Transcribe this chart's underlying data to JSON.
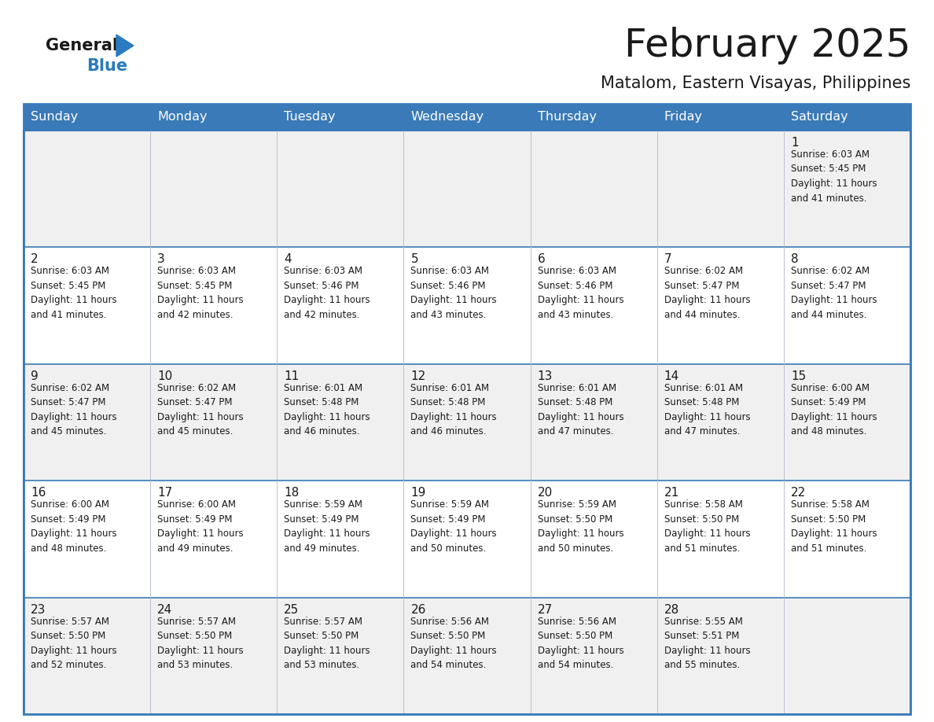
{
  "title": "February 2025",
  "subtitle": "Matalom, Eastern Visayas, Philippines",
  "header_color": "#3a7ab8",
  "header_text_color": "#ffffff",
  "cell_bg_even": "#f0f0f0",
  "cell_bg_odd": "#ffffff",
  "grid_line_color": "#3a7ab8",
  "inner_line_color": "#b0b8c8",
  "day_headers": [
    "Sunday",
    "Monday",
    "Tuesday",
    "Wednesday",
    "Thursday",
    "Friday",
    "Saturday"
  ],
  "title_color": "#1a1a1a",
  "subtitle_color": "#1a1a1a",
  "day_number_color": "#1a1a1a",
  "cell_text_color": "#1a1a1a",
  "logo_general_color": "#1a1a1a",
  "logo_blue_color": "#2a7bbf",
  "calendar_data": [
    [
      {
        "day": null,
        "info": null
      },
      {
        "day": null,
        "info": null
      },
      {
        "day": null,
        "info": null
      },
      {
        "day": null,
        "info": null
      },
      {
        "day": null,
        "info": null
      },
      {
        "day": null,
        "info": null
      },
      {
        "day": 1,
        "info": "Sunrise: 6:03 AM\nSunset: 5:45 PM\nDaylight: 11 hours\nand 41 minutes."
      }
    ],
    [
      {
        "day": 2,
        "info": "Sunrise: 6:03 AM\nSunset: 5:45 PM\nDaylight: 11 hours\nand 41 minutes."
      },
      {
        "day": 3,
        "info": "Sunrise: 6:03 AM\nSunset: 5:45 PM\nDaylight: 11 hours\nand 42 minutes."
      },
      {
        "day": 4,
        "info": "Sunrise: 6:03 AM\nSunset: 5:46 PM\nDaylight: 11 hours\nand 42 minutes."
      },
      {
        "day": 5,
        "info": "Sunrise: 6:03 AM\nSunset: 5:46 PM\nDaylight: 11 hours\nand 43 minutes."
      },
      {
        "day": 6,
        "info": "Sunrise: 6:03 AM\nSunset: 5:46 PM\nDaylight: 11 hours\nand 43 minutes."
      },
      {
        "day": 7,
        "info": "Sunrise: 6:02 AM\nSunset: 5:47 PM\nDaylight: 11 hours\nand 44 minutes."
      },
      {
        "day": 8,
        "info": "Sunrise: 6:02 AM\nSunset: 5:47 PM\nDaylight: 11 hours\nand 44 minutes."
      }
    ],
    [
      {
        "day": 9,
        "info": "Sunrise: 6:02 AM\nSunset: 5:47 PM\nDaylight: 11 hours\nand 45 minutes."
      },
      {
        "day": 10,
        "info": "Sunrise: 6:02 AM\nSunset: 5:47 PM\nDaylight: 11 hours\nand 45 minutes."
      },
      {
        "day": 11,
        "info": "Sunrise: 6:01 AM\nSunset: 5:48 PM\nDaylight: 11 hours\nand 46 minutes."
      },
      {
        "day": 12,
        "info": "Sunrise: 6:01 AM\nSunset: 5:48 PM\nDaylight: 11 hours\nand 46 minutes."
      },
      {
        "day": 13,
        "info": "Sunrise: 6:01 AM\nSunset: 5:48 PM\nDaylight: 11 hours\nand 47 minutes."
      },
      {
        "day": 14,
        "info": "Sunrise: 6:01 AM\nSunset: 5:48 PM\nDaylight: 11 hours\nand 47 minutes."
      },
      {
        "day": 15,
        "info": "Sunrise: 6:00 AM\nSunset: 5:49 PM\nDaylight: 11 hours\nand 48 minutes."
      }
    ],
    [
      {
        "day": 16,
        "info": "Sunrise: 6:00 AM\nSunset: 5:49 PM\nDaylight: 11 hours\nand 48 minutes."
      },
      {
        "day": 17,
        "info": "Sunrise: 6:00 AM\nSunset: 5:49 PM\nDaylight: 11 hours\nand 49 minutes."
      },
      {
        "day": 18,
        "info": "Sunrise: 5:59 AM\nSunset: 5:49 PM\nDaylight: 11 hours\nand 49 minutes."
      },
      {
        "day": 19,
        "info": "Sunrise: 5:59 AM\nSunset: 5:49 PM\nDaylight: 11 hours\nand 50 minutes."
      },
      {
        "day": 20,
        "info": "Sunrise: 5:59 AM\nSunset: 5:50 PM\nDaylight: 11 hours\nand 50 minutes."
      },
      {
        "day": 21,
        "info": "Sunrise: 5:58 AM\nSunset: 5:50 PM\nDaylight: 11 hours\nand 51 minutes."
      },
      {
        "day": 22,
        "info": "Sunrise: 5:58 AM\nSunset: 5:50 PM\nDaylight: 11 hours\nand 51 minutes."
      }
    ],
    [
      {
        "day": 23,
        "info": "Sunrise: 5:57 AM\nSunset: 5:50 PM\nDaylight: 11 hours\nand 52 minutes."
      },
      {
        "day": 24,
        "info": "Sunrise: 5:57 AM\nSunset: 5:50 PM\nDaylight: 11 hours\nand 53 minutes."
      },
      {
        "day": 25,
        "info": "Sunrise: 5:57 AM\nSunset: 5:50 PM\nDaylight: 11 hours\nand 53 minutes."
      },
      {
        "day": 26,
        "info": "Sunrise: 5:56 AM\nSunset: 5:50 PM\nDaylight: 11 hours\nand 54 minutes."
      },
      {
        "day": 27,
        "info": "Sunrise: 5:56 AM\nSunset: 5:50 PM\nDaylight: 11 hours\nand 54 minutes."
      },
      {
        "day": 28,
        "info": "Sunrise: 5:55 AM\nSunset: 5:51 PM\nDaylight: 11 hours\nand 55 minutes."
      },
      {
        "day": null,
        "info": null
      }
    ]
  ]
}
